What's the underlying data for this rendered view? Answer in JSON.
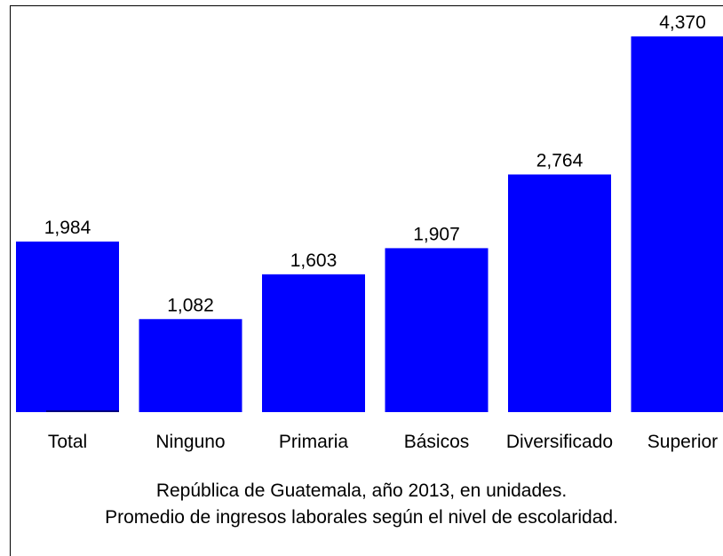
{
  "chart_data": {
    "type": "bar",
    "categories": [
      "Total",
      "Ninguno",
      "Primaria",
      "Básicos",
      "Diversificado",
      "Superior"
    ],
    "values": [
      1984,
      1082,
      1603,
      1907,
      2764,
      4370
    ],
    "data_labels": [
      "1,984",
      "1,082",
      "1,603",
      "1,907",
      "2,764",
      "4,370"
    ],
    "bar_color": "#0000FF",
    "ylim": [
      0,
      4370
    ],
    "grid": false,
    "legend": "none"
  },
  "caption": {
    "line1": "República de Guatemala, año 2013, en unidades.",
    "line2": "Promedio de ingresos laborales según el nivel de escolaridad."
  }
}
